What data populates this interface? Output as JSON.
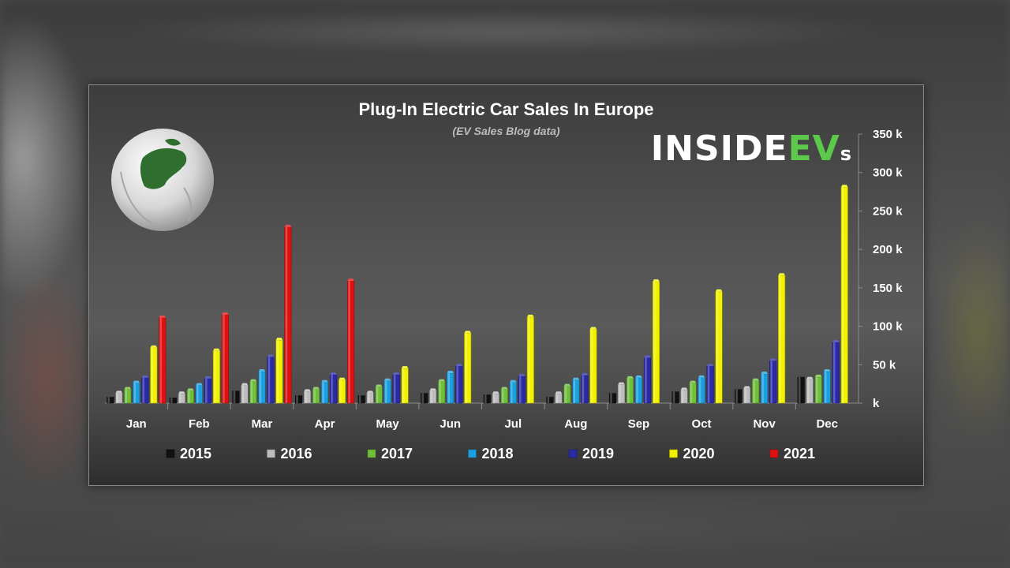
{
  "page": {
    "logo": {
      "text_main": "INSIDE",
      "text_accent": "EV",
      "text_suffix": "s",
      "accent_color": "#5cc94a"
    }
  },
  "chart_data": {
    "type": "bar",
    "title": "Plug-In Electric Car Sales In Europe",
    "subtitle": "(EV Sales Blog data)",
    "xlabel": "",
    "ylabel": "",
    "ylim": [
      0,
      350000
    ],
    "yticks": [
      0,
      50000,
      100000,
      150000,
      200000,
      250000,
      300000,
      350000
    ],
    "ytick_labels": [
      "k",
      "50 k",
      "100 k",
      "150 k",
      "200 k",
      "250 k",
      "300 k",
      "350 k"
    ],
    "y_axis_side": "right",
    "grid": false,
    "legend_position": "bottom",
    "categories": [
      "Jan",
      "Feb",
      "Mar",
      "Apr",
      "May",
      "Jun",
      "Jul",
      "Aug",
      "Sep",
      "Oct",
      "Nov",
      "Dec"
    ],
    "series": [
      {
        "name": "2015",
        "color": "#111111",
        "values": [
          8000,
          7000,
          16000,
          10000,
          10000,
          13000,
          11000,
          8000,
          13000,
          15000,
          18000,
          34000
        ]
      },
      {
        "name": "2016",
        "color": "#bdbdbd",
        "values": [
          13000,
          12000,
          23000,
          15000,
          13000,
          16000,
          12000,
          12000,
          24000,
          17000,
          19000,
          31000
        ]
      },
      {
        "name": "2017",
        "color": "#6fbf3a",
        "values": [
          18000,
          16000,
          28000,
          18000,
          21000,
          28000,
          18000,
          22000,
          32000,
          26000,
          29000,
          34000
        ]
      },
      {
        "name": "2018",
        "color": "#1a9fe0",
        "values": [
          26000,
          23000,
          41000,
          27000,
          29000,
          39000,
          27000,
          30000,
          33000,
          33000,
          38000,
          41000
        ]
      },
      {
        "name": "2019",
        "color": "#2a2aa8",
        "values": [
          33000,
          32000,
          60000,
          37000,
          37000,
          48000,
          35000,
          36000,
          59000,
          48000,
          55000,
          79000
        ]
      },
      {
        "name": "2020",
        "color": "#f2f200",
        "values": [
          72000,
          68000,
          82000,
          30000,
          45000,
          91000,
          112000,
          96000,
          158000,
          145000,
          166000,
          281000
        ]
      },
      {
        "name": "2021",
        "color": "#e01010",
        "values": [
          111000,
          115000,
          229000,
          159000,
          null,
          null,
          null,
          null,
          null,
          null,
          null,
          null
        ]
      }
    ]
  }
}
